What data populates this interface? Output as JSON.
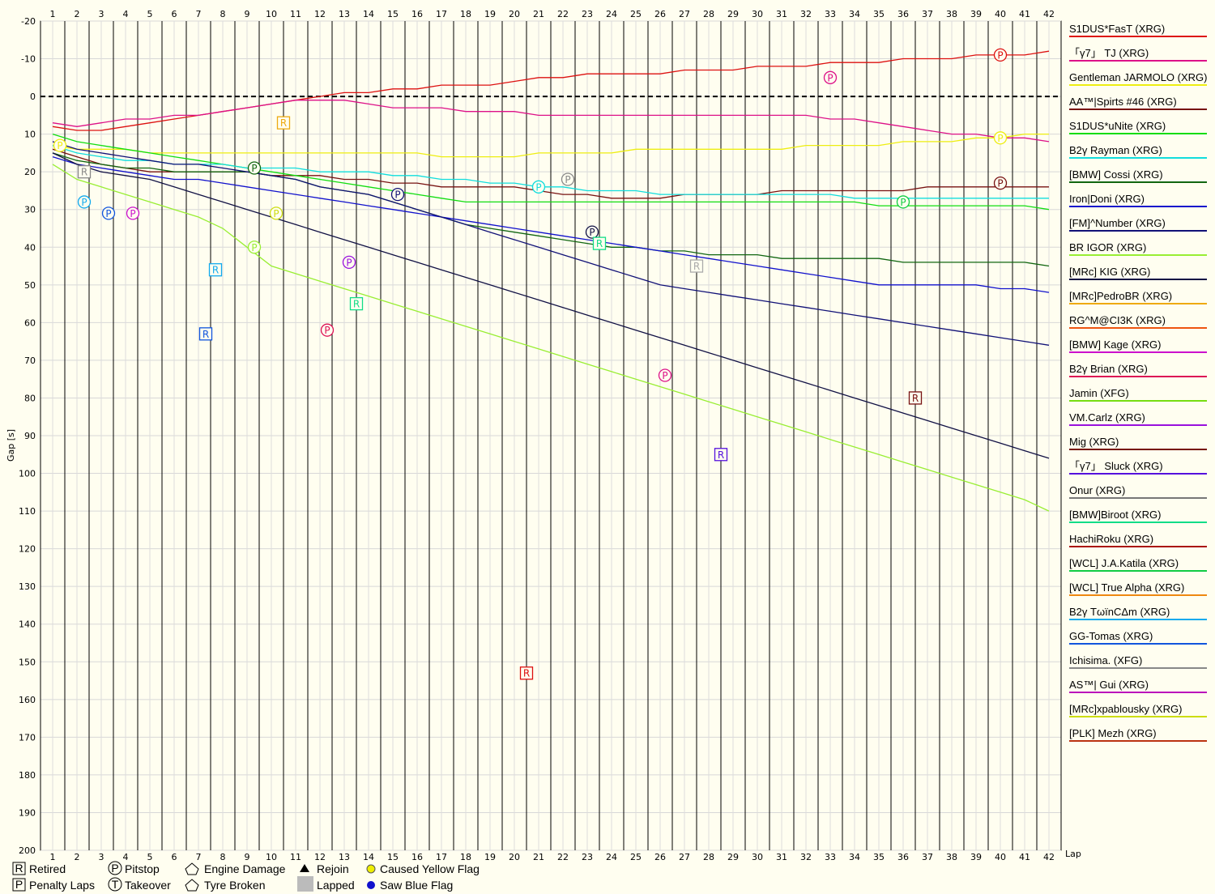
{
  "chart_data": {
    "type": "line",
    "ylabel": "Gap [s]",
    "xlabel": "Lap",
    "x": [
      1,
      2,
      3,
      4,
      5,
      6,
      7,
      8,
      9,
      10,
      11,
      12,
      13,
      14,
      15,
      16,
      17,
      18,
      19,
      20,
      21,
      22,
      23,
      24,
      25,
      26,
      27,
      28,
      29,
      30,
      31,
      32,
      33,
      34,
      35,
      36,
      37,
      38,
      39,
      40,
      41,
      42
    ],
    "xlim": [
      1,
      42
    ],
    "ylim": [
      -20,
      200
    ],
    "y_ticks": [
      -20,
      -10,
      0,
      10,
      20,
      30,
      40,
      50,
      60,
      70,
      80,
      90,
      100,
      110,
      120,
      130,
      140,
      150,
      160,
      170,
      180,
      190,
      200
    ],
    "y_inverted": true,
    "grid": true,
    "legend_position": "right",
    "series": [
      {
        "name": "S1DUS*FasT (XRG)",
        "color": "#dd1111",
        "values": [
          8,
          9,
          9,
          8,
          7,
          6,
          5,
          4,
          3,
          2,
          1,
          0,
          -1,
          -1,
          -2,
          -2,
          -3,
          -3,
          -3,
          -4,
          -5,
          -5,
          -6,
          -6,
          -6,
          -6,
          -7,
          -7,
          -7,
          -8,
          -8,
          -8,
          -9,
          -9,
          -9,
          -10,
          -10,
          -10,
          -11,
          -11,
          -11,
          -12
        ]
      },
      {
        "name": "「γ7」 TJ (XRG)",
        "color": "#dd1188",
        "values": [
          7,
          8,
          7,
          6,
          6,
          5,
          5,
          4,
          3,
          2,
          1,
          1,
          1,
          2,
          3,
          3,
          3,
          4,
          4,
          4,
          5,
          5,
          5,
          5,
          5,
          5,
          5,
          5,
          5,
          5,
          5,
          5,
          6,
          6,
          7,
          8,
          9,
          10,
          10,
          11,
          11,
          12
        ]
      },
      {
        "name": "Gentleman JARMOLO (XRG)",
        "color": "#eeee11",
        "values": [
          13,
          14,
          14,
          14,
          15,
          15,
          15,
          15,
          15,
          15,
          15,
          15,
          15,
          15,
          15,
          15,
          16,
          16,
          16,
          16,
          15,
          15,
          15,
          15,
          14,
          14,
          14,
          14,
          14,
          14,
          14,
          13,
          13,
          13,
          13,
          12,
          12,
          12,
          11,
          11,
          10,
          10
        ]
      },
      {
        "name": "AA™|Spirts #46 (XRG)",
        "color": "#771111",
        "values": [
          14,
          16,
          18,
          19,
          20,
          20,
          20,
          20,
          20,
          21,
          21,
          21,
          22,
          22,
          23,
          23,
          24,
          24,
          24,
          24,
          25,
          26,
          26,
          27,
          27,
          27,
          26,
          26,
          26,
          26,
          25,
          25,
          25,
          25,
          25,
          25,
          24,
          24,
          24,
          24,
          24,
          24
        ]
      },
      {
        "name": "S1DUS*uNite (XRG)",
        "color": "#11dd11",
        "values": [
          10,
          12,
          13,
          14,
          15,
          16,
          17,
          18,
          19,
          20,
          21,
          22,
          23,
          24,
          25,
          26,
          27,
          28,
          28,
          28,
          28,
          28,
          28,
          28,
          28,
          28,
          28,
          28,
          28,
          28,
          28,
          28,
          28,
          28,
          29,
          29,
          29,
          29,
          29,
          29,
          29,
          30
        ]
      },
      {
        "name": "B2γ Rayman (XRG)",
        "color": "#11dddd",
        "values": [
          13,
          15,
          16,
          17,
          17,
          18,
          18,
          18,
          19,
          19,
          19,
          20,
          20,
          20,
          21,
          21,
          22,
          22,
          23,
          23,
          24,
          24,
          25,
          25,
          25,
          26,
          26,
          26,
          26,
          26,
          26,
          26,
          26,
          27,
          27,
          27,
          27,
          27,
          27,
          27,
          27,
          27
        ]
      },
      {
        "name": "[BMW] Cossi (XRG)",
        "color": "#116611",
        "values": [
          15,
          17,
          18,
          19,
          19,
          20,
          20,
          20,
          20,
          21,
          22,
          24,
          25,
          26,
          28,
          30,
          32,
          34,
          35,
          36,
          37,
          38,
          39,
          40,
          40,
          41,
          41,
          42,
          42,
          42,
          43,
          43,
          43,
          43,
          43,
          44,
          44,
          44,
          44,
          44,
          44,
          45
        ]
      },
      {
        "name": "Iron|Doni (XRG)",
        "color": "#1111cc",
        "values": [
          16,
          18,
          19,
          20,
          21,
          22,
          22,
          23,
          24,
          25,
          26,
          27,
          28,
          29,
          30,
          31,
          32,
          33,
          34,
          35,
          36,
          37,
          38,
          39,
          40,
          41,
          42,
          43,
          44,
          45,
          46,
          47,
          48,
          49,
          50,
          50,
          50,
          50,
          50,
          51,
          51,
          52
        ]
      },
      {
        "name": "[FM]^Number (XRG)",
        "color": "#111177",
        "values": [
          12,
          14,
          15,
          16,
          17,
          18,
          18,
          19,
          20,
          21,
          22,
          24,
          25,
          26,
          28,
          30,
          32,
          34,
          36,
          38,
          40,
          42,
          44,
          46,
          48,
          50,
          51,
          52,
          53,
          54,
          55,
          56,
          57,
          58,
          59,
          60,
          61,
          62,
          63,
          64,
          65,
          66
        ]
      },
      {
        "name": "BR IGOR (XRG)",
        "color": "#99ee33",
        "values": [
          18,
          22,
          24,
          26,
          28,
          30,
          32,
          35,
          40,
          45,
          47,
          49,
          51,
          53,
          55,
          57,
          59,
          61,
          63,
          65,
          67,
          69,
          71,
          73,
          75,
          77,
          79,
          81,
          83,
          85,
          87,
          89,
          91,
          93,
          95,
          97,
          99,
          101,
          103,
          105,
          107,
          110
        ]
      },
      {
        "name": "[MRc] KIG (XRG)",
        "color": "#111144",
        "values": [
          15,
          18,
          20,
          21,
          22,
          24,
          26,
          28,
          30,
          32,
          34,
          36,
          38,
          40,
          42,
          44,
          46,
          48,
          50,
          52,
          54,
          56,
          58,
          60,
          62,
          64,
          66,
          68,
          70,
          72,
          74,
          76,
          78,
          80,
          82,
          84,
          86,
          88,
          90,
          92,
          94,
          96
        ]
      }
    ],
    "legend_names": [
      "S1DUS*FasT (XRG)",
      "「γ7」 TJ (XRG)",
      "Gentleman JARMOLO (XRG)",
      "AA™|Spirts #46 (XRG)",
      "S1DUS*uNite (XRG)",
      "B2γ Rayman (XRG)",
      "[BMW] Cossi (XRG)",
      "Iron|Doni (XRG)",
      "[FM]^Number (XRG)",
      "BR IGOR (XRG)",
      "[MRc] KIG (XRG)",
      "[MRc]PedroBR (XRG)",
      "RG^M@CI3K (XRG)",
      "[BMW] Kage (XRG)",
      "B2γ Brian (XRG)",
      "Jamin (XFG)",
      "VM.Carlz (XRG)",
      "Mig (XRG)",
      "「γ7」 Sluck (XRG)",
      "Onur (XRG)",
      "[BMW]Biroot (XRG)",
      "HachiRoku (XRG)",
      "[WCL] J.A.Katila (XRG)",
      "[WCL] True Alpha (XRG)",
      "B2γ TωïnCΔm (XRG)",
      "GG-Tomas (XRG)",
      "Ichisima. (XFG)",
      "AS™| Gui (XRG)",
      "[MRc]xpablousky (XRG)",
      "[PLK] Mezh (XRG)"
    ],
    "legend_colors": [
      "#dd1111",
      "#dd1188",
      "#eeee11",
      "#771111",
      "#11dd11",
      "#11dddd",
      "#116611",
      "#1111cc",
      "#111177",
      "#99ee33",
      "#111144",
      "#eeaa11",
      "#ee5511",
      "#cc11cc",
      "#dd1155",
      "#77dd11",
      "#9911dd",
      "#771100",
      "#5511dd",
      "#777777",
      "#11dd88",
      "#aa1111",
      "#11cc44",
      "#ee8811",
      "#11aaee",
      "#1155dd",
      "#888888",
      "#bb11bb",
      "#ccdd11",
      "#bb3311"
    ],
    "markers": [
      {
        "lap": 40,
        "gap": -11,
        "label": "P",
        "color": "#dd1111",
        "shape": "circle"
      },
      {
        "lap": 33,
        "gap": -5,
        "label": "P",
        "color": "#dd1188",
        "shape": "circle"
      },
      {
        "lap": 10.5,
        "gap": 7,
        "label": "R",
        "color": "#eeaa11",
        "shape": "square"
      },
      {
        "lap": 40,
        "gap": 11,
        "label": "P",
        "color": "#eeee11",
        "shape": "circle"
      },
      {
        "lap": 40,
        "gap": 23,
        "label": "P",
        "color": "#771111",
        "shape": "circle"
      },
      {
        "lap": 36,
        "gap": 28,
        "label": "P",
        "color": "#11cc44",
        "shape": "circle"
      },
      {
        "lap": 21,
        "gap": 24,
        "label": "P",
        "color": "#11dddd",
        "shape": "circle"
      },
      {
        "lap": 22.2,
        "gap": 22,
        "label": "P",
        "color": "#888888",
        "shape": "circle"
      },
      {
        "lap": 15.2,
        "gap": 26,
        "label": "P",
        "color": "#111177",
        "shape": "circle"
      },
      {
        "lap": 23.2,
        "gap": 36,
        "label": "P",
        "color": "#111144",
        "shape": "circle"
      },
      {
        "lap": 23.5,
        "gap": 39,
        "label": "R",
        "color": "#11dd88",
        "shape": "square"
      },
      {
        "lap": 27.5,
        "gap": 45,
        "label": "R",
        "color": "#aaaaaa",
        "shape": "square"
      },
      {
        "lap": 9.3,
        "gap": 19,
        "label": "P",
        "color": "#116611",
        "shape": "circle"
      },
      {
        "lap": 10.2,
        "gap": 31,
        "label": "P",
        "color": "#ccdd11",
        "shape": "circle"
      },
      {
        "lap": 9.3,
        "gap": 40,
        "label": "P",
        "color": "#99ee33",
        "shape": "circle"
      },
      {
        "lap": 13.2,
        "gap": 44,
        "label": "P",
        "color": "#9911dd",
        "shape": "circle"
      },
      {
        "lap": 13.5,
        "gap": 55,
        "label": "R",
        "color": "#11dd88",
        "shape": "square"
      },
      {
        "lap": 7.7,
        "gap": 46,
        "label": "R",
        "color": "#11aaee",
        "shape": "square"
      },
      {
        "lap": 7.3,
        "gap": 63,
        "label": "R",
        "color": "#1155dd",
        "shape": "square"
      },
      {
        "lap": 12.3,
        "gap": 62,
        "label": "P",
        "color": "#dd1155",
        "shape": "circle"
      },
      {
        "lap": 26.2,
        "gap": 74,
        "label": "P",
        "color": "#dd1188",
        "shape": "circle"
      },
      {
        "lap": 36.5,
        "gap": 80,
        "label": "R",
        "color": "#771111",
        "shape": "square"
      },
      {
        "lap": 28.5,
        "gap": 95,
        "label": "R",
        "color": "#5511dd",
        "shape": "square"
      },
      {
        "lap": 20.5,
        "gap": 153,
        "label": "R",
        "color": "#dd1111",
        "shape": "square"
      },
      {
        "lap": 2.3,
        "gap": 20,
        "label": "R",
        "color": "#888888",
        "shape": "square"
      },
      {
        "lap": 2.3,
        "gap": 28,
        "label": "P",
        "color": "#11aaee",
        "shape": "circle"
      },
      {
        "lap": 3.3,
        "gap": 31,
        "label": "P",
        "color": "#1155dd",
        "shape": "circle"
      },
      {
        "lap": 4.3,
        "gap": 31,
        "label": "P",
        "color": "#cc11cc",
        "shape": "circle"
      },
      {
        "lap": 1.3,
        "gap": 13,
        "label": "P",
        "color": "#eeee11",
        "shape": "circle"
      }
    ],
    "key": {
      "retired": "Retired",
      "pitstop": "Pitstop",
      "engine_damage": "Engine Damage",
      "rejoin": "Rejoin",
      "caused_yellow": "Caused Yellow Flag",
      "penalty_laps": "Penalty Laps",
      "takeover": "Takeover",
      "tyre_broken": "Tyre Broken",
      "lapped": "Lapped",
      "saw_blue": "Saw Blue Flag",
      "retired_symbol": "R",
      "pitstop_symbol": "P",
      "penalty_symbol": "P",
      "takeover_symbol": "T"
    }
  }
}
